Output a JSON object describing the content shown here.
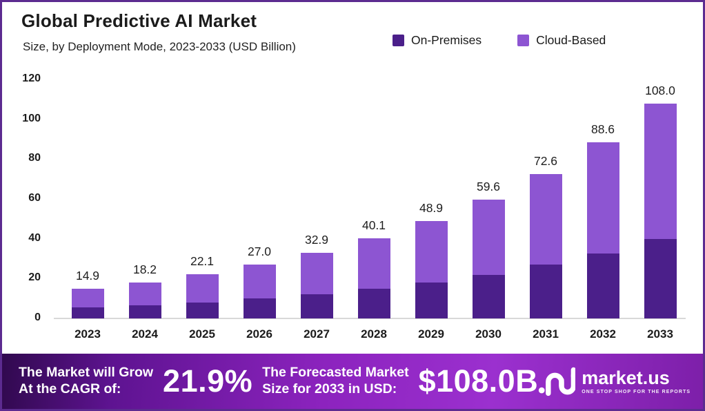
{
  "header": {
    "title": "Global Predictive AI Market",
    "subtitle": "Size, by Deployment Mode, 2023-2033 (USD Billion)"
  },
  "chart_data": {
    "type": "bar",
    "stacked": true,
    "title": "Global Predictive AI Market",
    "subtitle": "Size, by Deployment Mode, 2023-2033 (USD Billion)",
    "categories": [
      "2023",
      "2024",
      "2025",
      "2026",
      "2027",
      "2028",
      "2029",
      "2030",
      "2031",
      "2032",
      "2033"
    ],
    "series": [
      {
        "name": "On-Premises",
        "color": "#4b1f8a",
        "values": [
          5.4,
          6.5,
          8.0,
          10.0,
          12.1,
          14.9,
          18.1,
          22.0,
          26.9,
          32.6,
          39.9
        ]
      },
      {
        "name": "Cloud-Based",
        "color": "#8d55d2",
        "values": [
          9.5,
          11.7,
          14.1,
          17.0,
          20.8,
          25.2,
          30.8,
          37.6,
          45.7,
          56.0,
          68.1
        ]
      }
    ],
    "totals": [
      14.9,
      18.2,
      22.1,
      27.0,
      32.9,
      40.1,
      48.9,
      59.6,
      72.6,
      88.6,
      108.0
    ],
    "value_labels": [
      "14.9",
      "18.2",
      "22.1",
      "27.0",
      "32.9",
      "40.1",
      "48.9",
      "59.6",
      "72.6",
      "88.6",
      "108.0"
    ],
    "ylabel": "",
    "xlabel": "",
    "ylim": [
      0,
      120
    ],
    "yticks": [
      0,
      20,
      40,
      60,
      80,
      100,
      120
    ],
    "grid": false,
    "legend_position": "top-right",
    "units": "USD Billion"
  },
  "banner": {
    "cagr_label_line1": "The Market will Grow",
    "cagr_label_line2": "At the CAGR of:",
    "cagr_value": "21.9%",
    "forecast_label_line1": "The Forecasted Market",
    "forecast_label_line2": "Size for 2033 in USD:",
    "forecast_value": "$108.0B",
    "logo": {
      "brand": "market.us",
      "tagline": "ONE STOP SHOP FOR THE REPORTS"
    }
  },
  "colors": {
    "on_premises": "#4b1f8a",
    "cloud_based": "#8d55d2",
    "frame_border": "#5c2b90",
    "banner_purple": "#8c23be"
  }
}
